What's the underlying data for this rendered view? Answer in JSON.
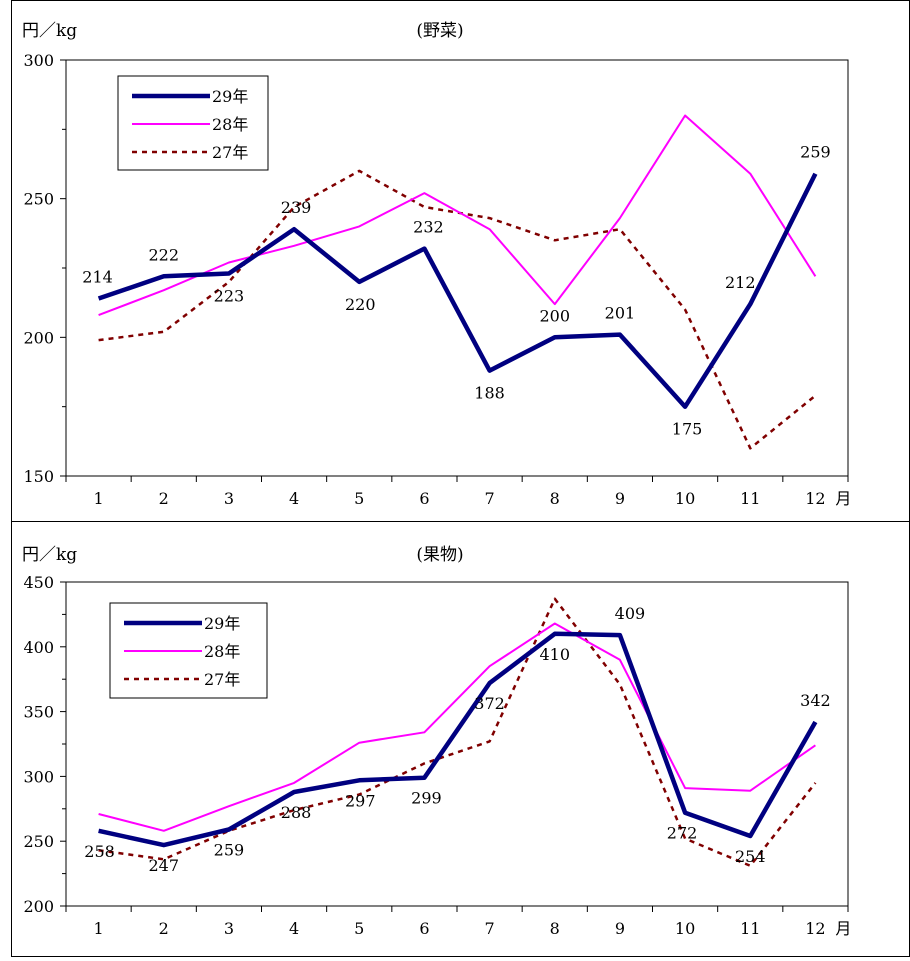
{
  "chart_data": [
    {
      "type": "line",
      "title": "(野菜)",
      "ylabel": "円／kg",
      "xunit": "月",
      "categories": [
        "1",
        "2",
        "3",
        "4",
        "5",
        "6",
        "7",
        "8",
        "9",
        "10",
        "11",
        "12"
      ],
      "ylim": [
        150,
        300
      ],
      "yticks": [
        150,
        200,
        250,
        300
      ],
      "legend": "top-left",
      "series": [
        {
          "name": "29年",
          "color": "#000080",
          "style": "thick",
          "labels": true,
          "values": [
            214,
            222,
            223,
            239,
            220,
            232,
            188,
            200,
            201,
            175,
            212,
            259
          ]
        },
        {
          "name": "28年",
          "color": "#ff00ff",
          "style": "solid",
          "values": [
            208,
            217,
            227,
            233,
            240,
            252,
            239,
            212,
            243,
            280,
            259,
            222
          ]
        },
        {
          "name": "27年",
          "color": "#800000",
          "style": "dashed",
          "values": [
            199,
            202,
            220,
            247,
            260,
            247,
            243,
            235,
            239,
            210,
            160,
            179
          ]
        }
      ]
    },
    {
      "type": "line",
      "title": "(果物)",
      "ylabel": "円／kg",
      "xunit": "月",
      "categories": [
        "1",
        "2",
        "3",
        "4",
        "5",
        "6",
        "7",
        "8",
        "9",
        "10",
        "11",
        "12"
      ],
      "ylim": [
        200,
        450
      ],
      "yticks": [
        200,
        250,
        300,
        350,
        400,
        450
      ],
      "legend": "top-left",
      "series": [
        {
          "name": "29年",
          "color": "#000080",
          "style": "thick",
          "labels": true,
          "values": [
            258,
            247,
            259,
            288,
            297,
            299,
            372,
            410,
            409,
            272,
            254,
            342
          ]
        },
        {
          "name": "28年",
          "color": "#ff00ff",
          "style": "solid",
          "values": [
            271,
            258,
            277,
            295,
            326,
            334,
            385,
            418,
            390,
            291,
            289,
            324
          ]
        },
        {
          "name": "27年",
          "color": "#800000",
          "style": "dashed",
          "values": [
            243,
            236,
            258,
            274,
            286,
            310,
            327,
            437,
            371,
            252,
            231,
            295
          ]
        }
      ]
    }
  ]
}
